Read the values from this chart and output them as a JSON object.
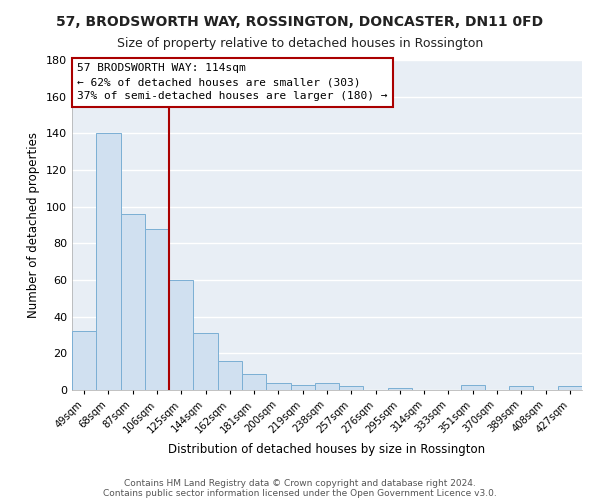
{
  "title": "57, BRODSWORTH WAY, ROSSINGTON, DONCASTER, DN11 0FD",
  "subtitle": "Size of property relative to detached houses in Rossington",
  "xlabel": "Distribution of detached houses by size in Rossington",
  "ylabel": "Number of detached properties",
  "bar_labels": [
    "49sqm",
    "68sqm",
    "87sqm",
    "106sqm",
    "125sqm",
    "144sqm",
    "162sqm",
    "181sqm",
    "200sqm",
    "219sqm",
    "238sqm",
    "257sqm",
    "276sqm",
    "295sqm",
    "314sqm",
    "333sqm",
    "351sqm",
    "370sqm",
    "389sqm",
    "408sqm",
    "427sqm"
  ],
  "bar_values": [
    32,
    140,
    96,
    88,
    60,
    31,
    16,
    9,
    4,
    3,
    4,
    2,
    0,
    1,
    0,
    0,
    3,
    0,
    2,
    0,
    2
  ],
  "bar_color": "#d0e0f0",
  "bar_edge_color": "#7bafd4",
  "ylim": [
    0,
    180
  ],
  "yticks": [
    0,
    20,
    40,
    60,
    80,
    100,
    120,
    140,
    160,
    180
  ],
  "vline_x": 3.5,
  "vline_color": "#aa0000",
  "annotation_title": "57 BRODSWORTH WAY: 114sqm",
  "annotation_line1": "← 62% of detached houses are smaller (303)",
  "annotation_line2": "37% of semi-detached houses are larger (180) →",
  "footer1": "Contains HM Land Registry data © Crown copyright and database right 2024.",
  "footer2": "Contains public sector information licensed under the Open Government Licence v3.0.",
  "fig_bg_color": "#ffffff",
  "plot_bg_color": "#e8eef5",
  "grid_color": "#ffffff",
  "title_fontsize": 10,
  "subtitle_fontsize": 9
}
